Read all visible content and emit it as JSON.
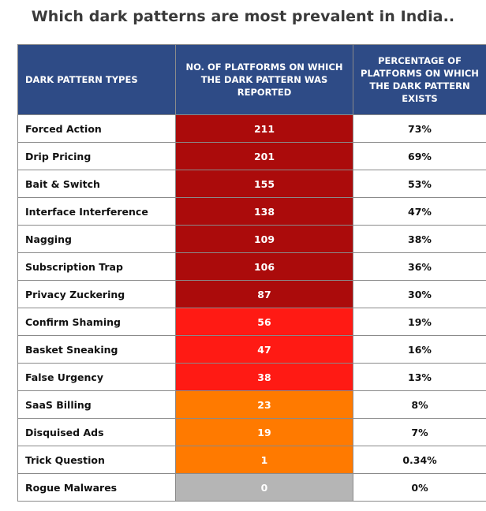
{
  "title": "Which dark patterns are most prevalent in India..",
  "chart_data": {
    "type": "table",
    "columns": [
      "DARK PATTERN TYPES",
      "NO. OF PLATFORMS ON WHICH THE DARK PATTERN WAS REPORTED",
      "PERCENTAGE OF PLATFORMS ON WHICH THE DARK PATTERN EXISTS"
    ],
    "rows": [
      {
        "type": "Forced Action",
        "count": "211",
        "percent": "73%",
        "color": "#ab0b0b"
      },
      {
        "type": "Drip Pricing",
        "count": "201",
        "percent": "69%",
        "color": "#ab0b0b"
      },
      {
        "type": "Bait & Switch",
        "count": "155",
        "percent": "53%",
        "color": "#ab0b0b"
      },
      {
        "type": "Interface Interference",
        "count": "138",
        "percent": "47%",
        "color": "#ab0b0b"
      },
      {
        "type": "Nagging",
        "count": "109",
        "percent": "38%",
        "color": "#ab0b0b"
      },
      {
        "type": "Subscription Trap",
        "count": "106",
        "percent": "36%",
        "color": "#ab0b0b"
      },
      {
        "type": "Privacy Zuckering",
        "count": "87",
        "percent": "30%",
        "color": "#ab0b0b"
      },
      {
        "type": "Confirm Shaming",
        "count": "56",
        "percent": "19%",
        "color": "#ff1a14"
      },
      {
        "type": "Basket Sneaking",
        "count": "47",
        "percent": "16%",
        "color": "#ff1a14"
      },
      {
        "type": "False Urgency",
        "count": "38",
        "percent": "13%",
        "color": "#ff1a14"
      },
      {
        "type": "SaaS Billing",
        "count": "23",
        "percent": "8%",
        "color": "#ff7a00"
      },
      {
        "type": "Disquised Ads",
        "count": "19",
        "percent": "7%",
        "color": "#ff7a00"
      },
      {
        "type": "Trick Question",
        "count": "1",
        "percent": "0.34%",
        "color": "#ff7a00"
      },
      {
        "type": "Rogue Malwares",
        "count": "0",
        "percent": "0%",
        "color": "#b5b5b5"
      }
    ]
  }
}
